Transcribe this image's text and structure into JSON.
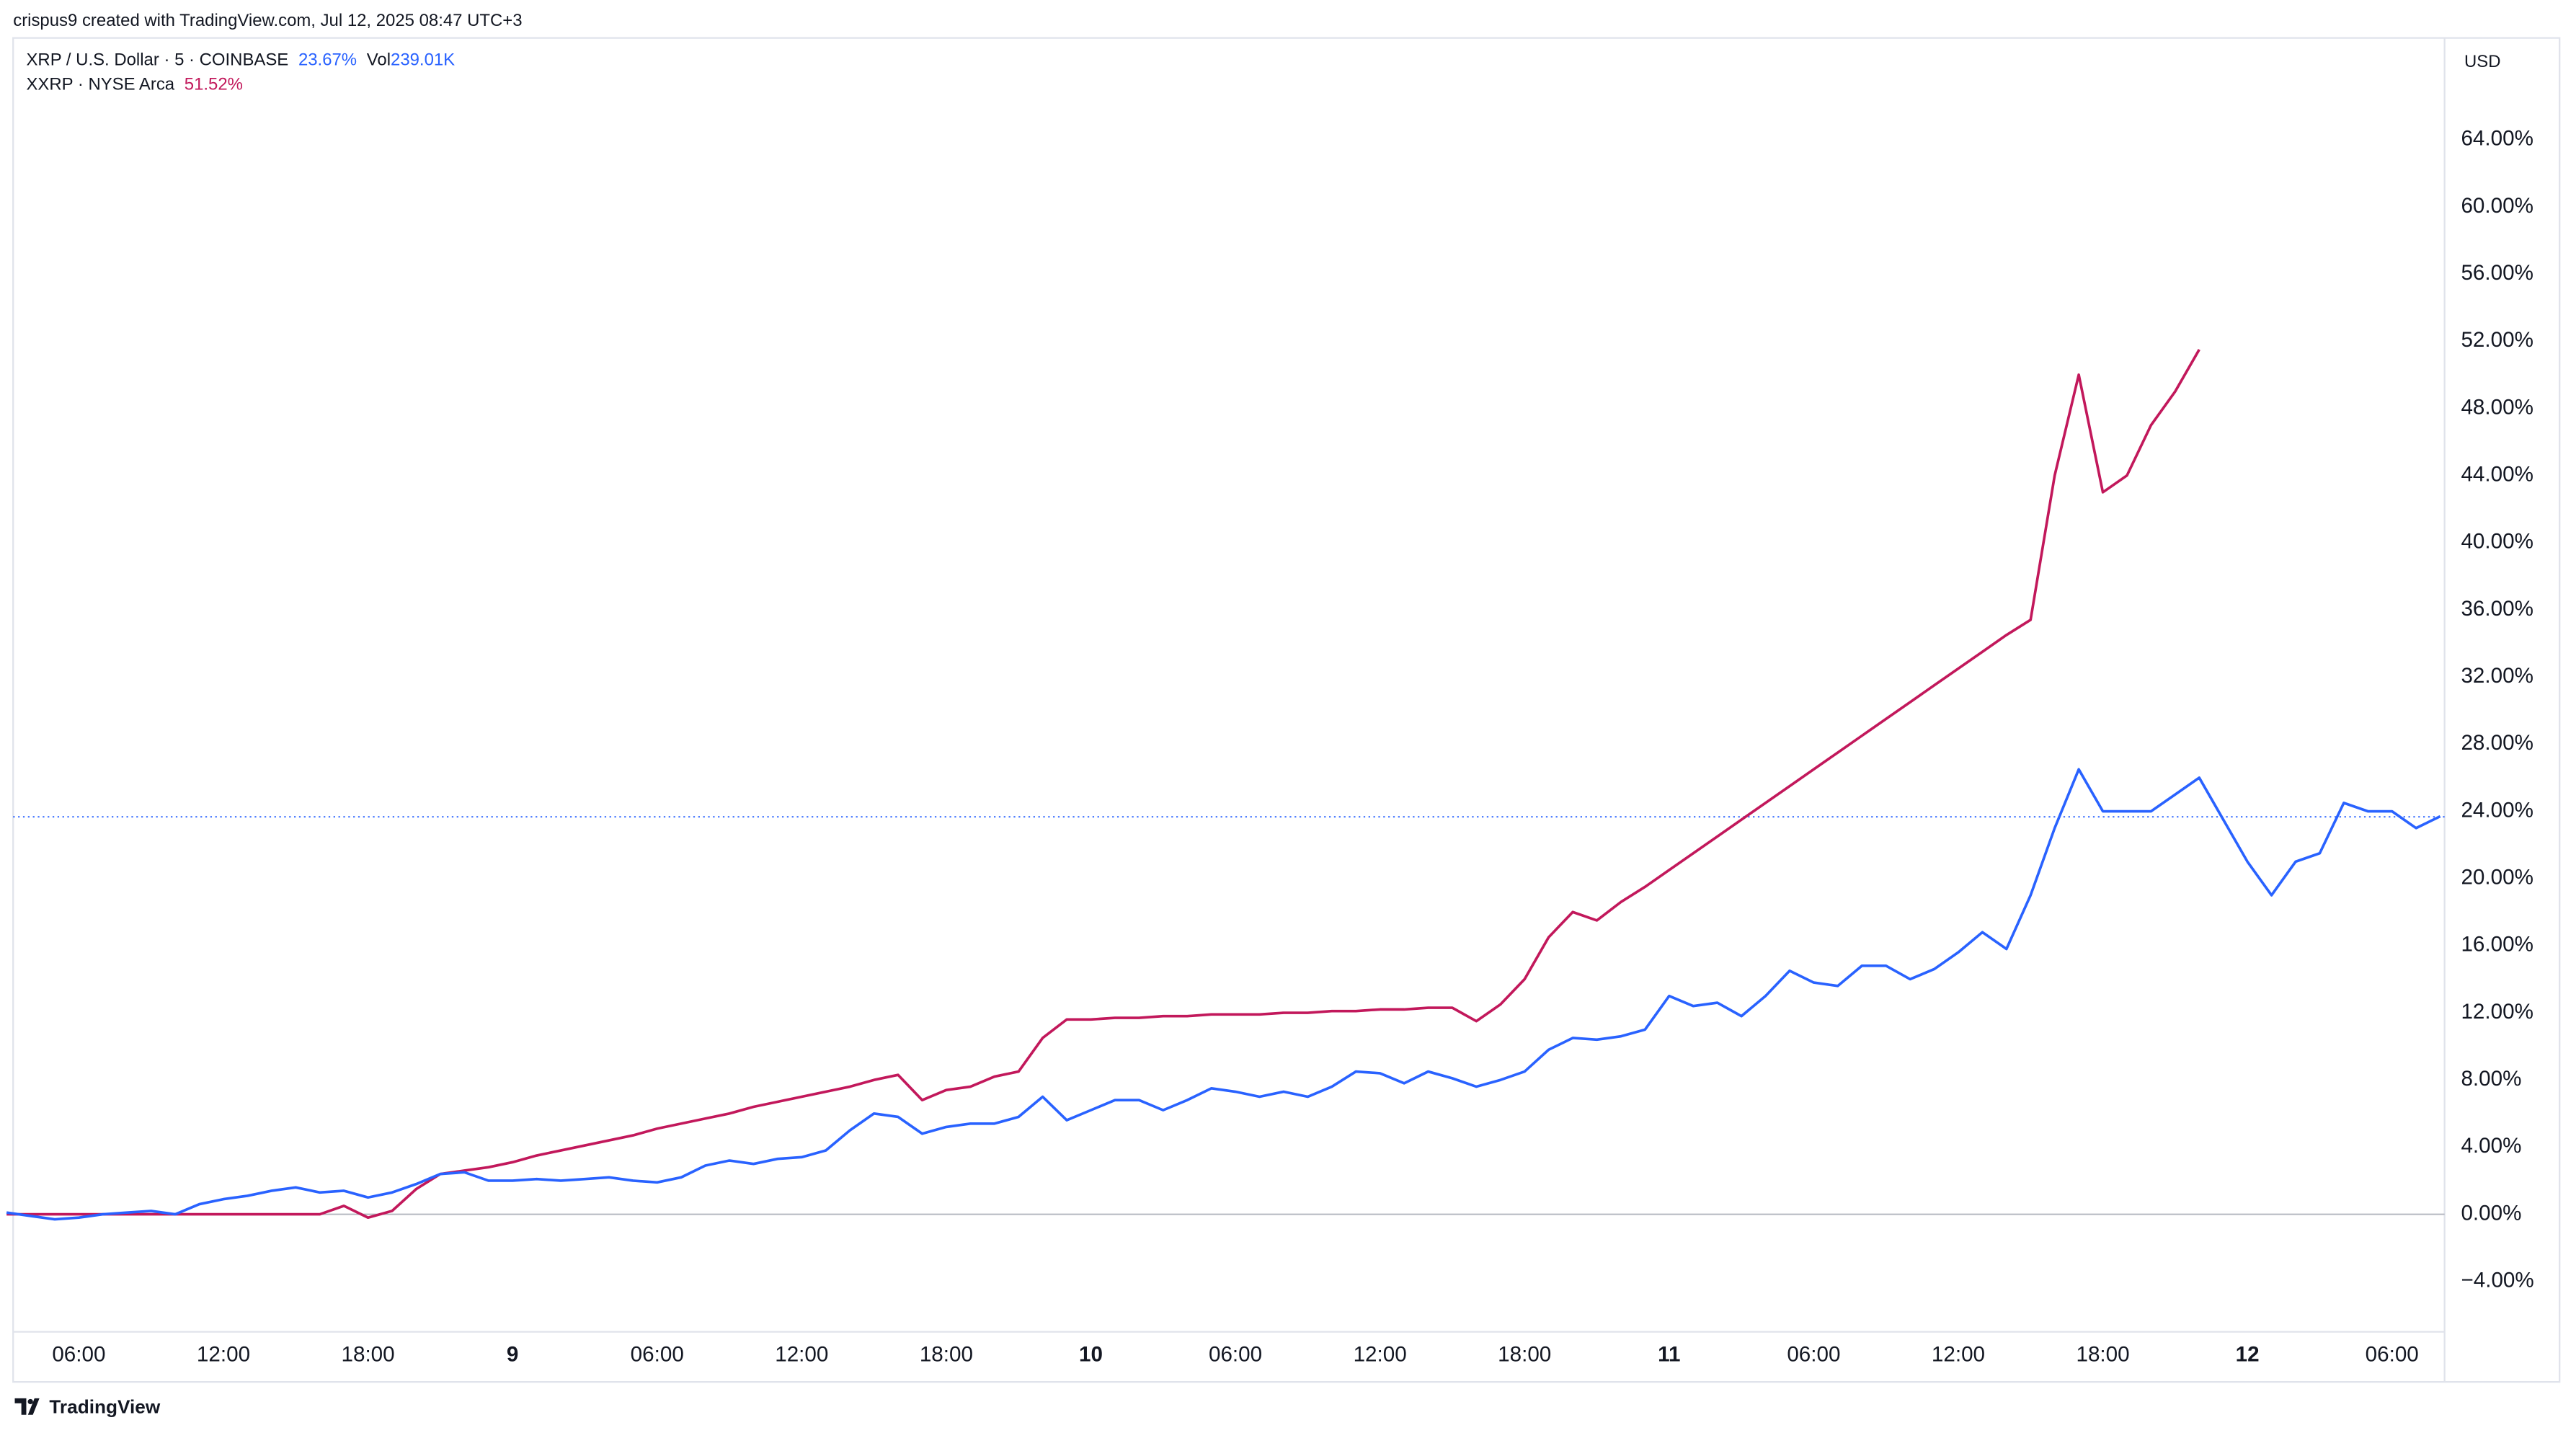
{
  "header": "crispus9 created with TradingView.com, Jul 12, 2025 08:47 UTC+3",
  "brand": "TradingView",
  "chart_data": {
    "type": "line",
    "currency": "USD",
    "categories": [
      null,
      null,
      null,
      "06:00",
      null,
      null,
      null,
      null,
      null,
      "12:00",
      null,
      null,
      null,
      null,
      null,
      "18:00",
      null,
      null,
      null,
      null,
      null,
      "9",
      null,
      null,
      null,
      null,
      null,
      "06:00",
      null,
      null,
      null,
      null,
      null,
      "12:00",
      null,
      null,
      null,
      null,
      null,
      "18:00",
      null,
      null,
      null,
      null,
      null,
      "10",
      null,
      null,
      null,
      null,
      null,
      "06:00",
      null,
      null,
      null,
      null,
      null,
      "12:00",
      null,
      null,
      null,
      null,
      null,
      "18:00",
      null,
      null,
      null,
      null,
      null,
      "11",
      null,
      null,
      null,
      null,
      null,
      "06:00",
      null,
      null,
      null,
      null,
      null,
      "12:00",
      null,
      null,
      null,
      null,
      null,
      "18:00",
      null,
      null,
      null,
      null,
      null,
      "12",
      null,
      null,
      null,
      null,
      null,
      "06:00",
      null,
      null
    ],
    "series": [
      {
        "name": "XRP / U.S. Dollar · 5 · COINBASE",
        "color": "#2962ff",
        "last": 23.67,
        "last_label": "23.67%",
        "volume_title": "Vol",
        "volume": "239.01K",
        "values": [
          0.1,
          -0.1,
          -0.3,
          -0.2,
          0.0,
          0.1,
          0.2,
          0.0,
          0.6,
          0.9,
          1.1,
          1.4,
          1.6,
          1.3,
          1.4,
          1.0,
          1.3,
          1.8,
          2.4,
          2.5,
          2.0,
          2.0,
          2.1,
          2.0,
          2.1,
          2.2,
          2.0,
          1.9,
          2.2,
          2.9,
          3.2,
          3.0,
          3.3,
          3.4,
          3.8,
          5.0,
          6.0,
          5.8,
          4.8,
          5.2,
          5.4,
          5.4,
          5.8,
          7.0,
          5.6,
          6.2,
          6.8,
          6.8,
          6.2,
          6.8,
          7.5,
          7.3,
          7.0,
          7.3,
          7.0,
          7.6,
          8.5,
          8.4,
          7.8,
          8.5,
          8.1,
          7.6,
          8.0,
          8.5,
          9.8,
          10.5,
          10.4,
          10.6,
          11.0,
          13.0,
          12.4,
          12.6,
          11.8,
          13.0,
          14.5,
          13.8,
          13.6,
          14.8,
          14.8,
          14.0,
          14.6,
          15.6,
          16.8,
          15.8,
          19.0,
          23.0,
          26.5,
          24.0,
          24.0,
          24.0,
          25.0,
          26.0,
          23.5,
          21.0,
          19.0,
          21.0,
          21.5,
          24.5,
          24.0,
          24.0,
          23.0,
          23.7
        ]
      },
      {
        "name": "XXRP · NYSE Arca",
        "color": "#c2185b",
        "last": 51.52,
        "last_label": "51.52%",
        "values": [
          0,
          0,
          0,
          0,
          0,
          0,
          0,
          0,
          0,
          0,
          0,
          0,
          0,
          0,
          0.5,
          -0.2,
          0.2,
          1.5,
          2.4,
          2.6,
          2.8,
          3.1,
          3.5,
          3.8,
          4.1,
          4.4,
          4.7,
          5.1,
          5.4,
          5.7,
          6.0,
          6.4,
          6.7,
          7.0,
          7.3,
          7.6,
          8.0,
          8.3,
          6.8,
          7.4,
          7.6,
          8.2,
          8.5,
          10.5,
          11.6,
          11.6,
          11.7,
          11.7,
          11.8,
          11.8,
          11.9,
          11.9,
          11.9,
          12.0,
          12.0,
          12.1,
          12.1,
          12.2,
          12.2,
          12.3,
          12.3,
          11.5,
          12.5,
          14.0,
          16.5,
          18.0,
          17.5,
          18.6,
          19.5,
          20.5,
          21.5,
          22.5,
          23.5,
          24.5,
          25.5,
          26.5,
          27.5,
          28.5,
          29.5,
          30.5,
          31.5,
          32.5,
          33.5,
          34.5,
          35.4,
          44.0,
          50.0,
          43.0,
          44.0,
          47.0,
          49.0,
          51.5,
          null,
          null,
          null,
          null,
          null,
          null,
          null,
          null,
          null,
          null
        ]
      }
    ],
    "ylim": [
      -7,
      70
    ],
    "yticks": [
      {
        "value": -4,
        "label": "−4.00%"
      },
      {
        "value": 0,
        "label": "0.00%"
      },
      {
        "value": 4,
        "label": "4.00%"
      },
      {
        "value": 8,
        "label": "8.00%"
      },
      {
        "value": 12,
        "label": "12.00%"
      },
      {
        "value": 16,
        "label": "16.00%"
      },
      {
        "value": 20,
        "label": "20.00%"
      },
      {
        "value": 24,
        "label": "24.00%"
      },
      {
        "value": 28,
        "label": "28.00%"
      },
      {
        "value": 32,
        "label": "32.00%"
      },
      {
        "value": 36,
        "label": "36.00%"
      },
      {
        "value": 40,
        "label": "40.00%"
      },
      {
        "value": 44,
        "label": "44.00%"
      },
      {
        "value": 48,
        "label": "48.00%"
      },
      {
        "value": 52,
        "label": "52.00%"
      },
      {
        "value": 56,
        "label": "56.00%"
      },
      {
        "value": 60,
        "label": "60.00%"
      },
      {
        "value": 64,
        "label": "64.00%"
      }
    ],
    "grid": false
  }
}
